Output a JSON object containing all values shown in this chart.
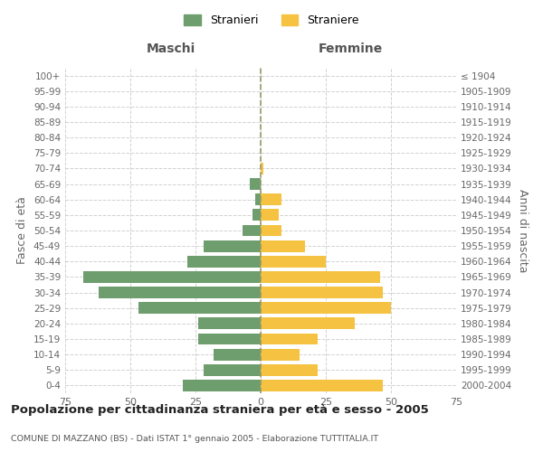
{
  "age_groups": [
    "0-4",
    "5-9",
    "10-14",
    "15-19",
    "20-24",
    "25-29",
    "30-34",
    "35-39",
    "40-44",
    "45-49",
    "50-54",
    "55-59",
    "60-64",
    "65-69",
    "70-74",
    "75-79",
    "80-84",
    "85-89",
    "90-94",
    "95-99",
    "100+"
  ],
  "birth_years": [
    "2000-2004",
    "1995-1999",
    "1990-1994",
    "1985-1989",
    "1980-1984",
    "1975-1979",
    "1970-1974",
    "1965-1969",
    "1960-1964",
    "1955-1959",
    "1950-1954",
    "1945-1949",
    "1940-1944",
    "1935-1939",
    "1930-1934",
    "1925-1929",
    "1920-1924",
    "1915-1919",
    "1910-1914",
    "1905-1909",
    "≤ 1904"
  ],
  "maschi": [
    30,
    22,
    18,
    24,
    24,
    47,
    62,
    68,
    28,
    22,
    7,
    3,
    2,
    4,
    0,
    0,
    0,
    0,
    0,
    0,
    0
  ],
  "femmine": [
    47,
    22,
    15,
    22,
    36,
    50,
    47,
    46,
    25,
    17,
    8,
    7,
    8,
    0,
    1,
    0,
    0,
    0,
    0,
    0,
    0
  ],
  "color_maschi": "#6e9e6e",
  "color_femmine": "#f5c242",
  "xlim": 75,
  "title": "Popolazione per cittadinanza straniera per età e sesso - 2005",
  "subtitle": "COMUNE DI MAZZANO (BS) - Dati ISTAT 1° gennaio 2005 - Elaborazione TUTTITALIA.IT",
  "ylabel_left": "Fasce di età",
  "ylabel_right": "Anni di nascita",
  "label_maschi": "Maschi",
  "label_femmine": "Femmine",
  "legend_stranieri": "Stranieri",
  "legend_straniere": "Straniere",
  "bg_color": "#ffffff",
  "grid_color": "#cccccc"
}
